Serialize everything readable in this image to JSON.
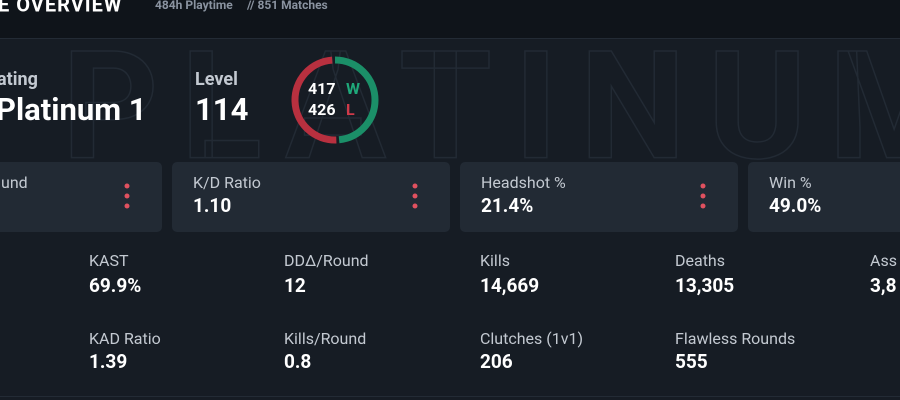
{
  "header": {
    "title": "E OVERVIEW",
    "playtime": "484h Playtime",
    "matches": "// 851 Matches"
  },
  "watermark": "PLATINUM",
  "rating": {
    "label": "ating",
    "value": "Platinum 1"
  },
  "level": {
    "label": "Level",
    "value": "114"
  },
  "record": {
    "wins": 417,
    "wins_label": "W",
    "losses": 426,
    "losses_label": "L"
  },
  "cards": [
    {
      "label": "und"
    },
    {
      "label": "K/D Ratio",
      "value": "1.10"
    },
    {
      "label": "Headshot %",
      "value": "21.4%"
    },
    {
      "label": "Win %",
      "value": "49.0%"
    }
  ],
  "stats": [
    [
      {
        "label": "KAST",
        "value": "69.9%"
      },
      {
        "label": "DDΔ/Round",
        "value": "12"
      },
      {
        "label": "Kills",
        "value": "14,669"
      },
      {
        "label": "Deaths",
        "value": "13,305"
      },
      {
        "label": "Ass",
        "value": "3,8"
      }
    ],
    [
      {
        "label": "KAD Ratio",
        "value": "1.39"
      },
      {
        "label": "Kills/Round",
        "value": "0.8"
      },
      {
        "label": "Clutches (1v1)",
        "value": "206"
      },
      {
        "label": "Flawless Rounds",
        "value": "555"
      }
    ]
  ]
}
